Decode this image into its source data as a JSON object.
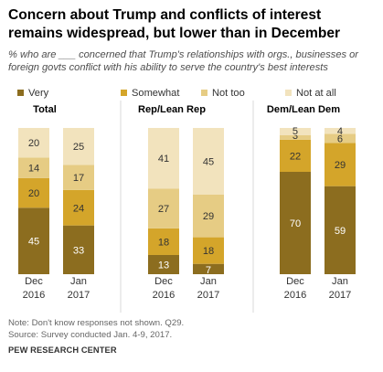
{
  "title": "Concern about Trump and conflicts of interest remains widespread, but lower than in December",
  "subtitle": "% who are ___ concerned that Trump's relationships with orgs., businesses or foreign govts conflict with his ability to serve the country's best interests",
  "legend": [
    {
      "label": "Very",
      "color": "#8c6d1f"
    },
    {
      "label": "Somewhat",
      "color": "#d4a52a"
    },
    {
      "label": "Not too",
      "color": "#e6cc84"
    },
    {
      "label": "Not at all",
      "color": "#f2e3bd"
    }
  ],
  "chart_data": {
    "type": "bar",
    "stacked": true,
    "series_names": [
      "Very",
      "Somewhat",
      "Not too",
      "Not at all"
    ],
    "groups": [
      {
        "name": "Total",
        "bars": [
          {
            "label": [
              "Dec",
              "2016"
            ],
            "values": [
              45,
              20,
              14,
              20
            ]
          },
          {
            "label": [
              "Jan",
              "2017"
            ],
            "values": [
              33,
              24,
              17,
              25
            ]
          }
        ]
      },
      {
        "name": "Rep/Lean Rep",
        "bars": [
          {
            "label": [
              "Dec",
              "2016"
            ],
            "values": [
              13,
              18,
              27,
              41
            ]
          },
          {
            "label": [
              "Jan",
              "2017"
            ],
            "values": [
              7,
              18,
              29,
              45
            ]
          }
        ]
      },
      {
        "name": "Dem/Lean Dem",
        "bars": [
          {
            "label": [
              "Dec",
              "2016"
            ],
            "values": [
              70,
              22,
              3,
              5
            ]
          },
          {
            "label": [
              "Jan",
              "2017"
            ],
            "values": [
              59,
              29,
              6,
              4
            ]
          }
        ]
      }
    ]
  },
  "notes": [
    "Note: Don't know responses not shown. Q29.",
    "Source: Survey conducted Jan. 4-9, 2017."
  ],
  "source_org": "PEW RESEARCH CENTER"
}
